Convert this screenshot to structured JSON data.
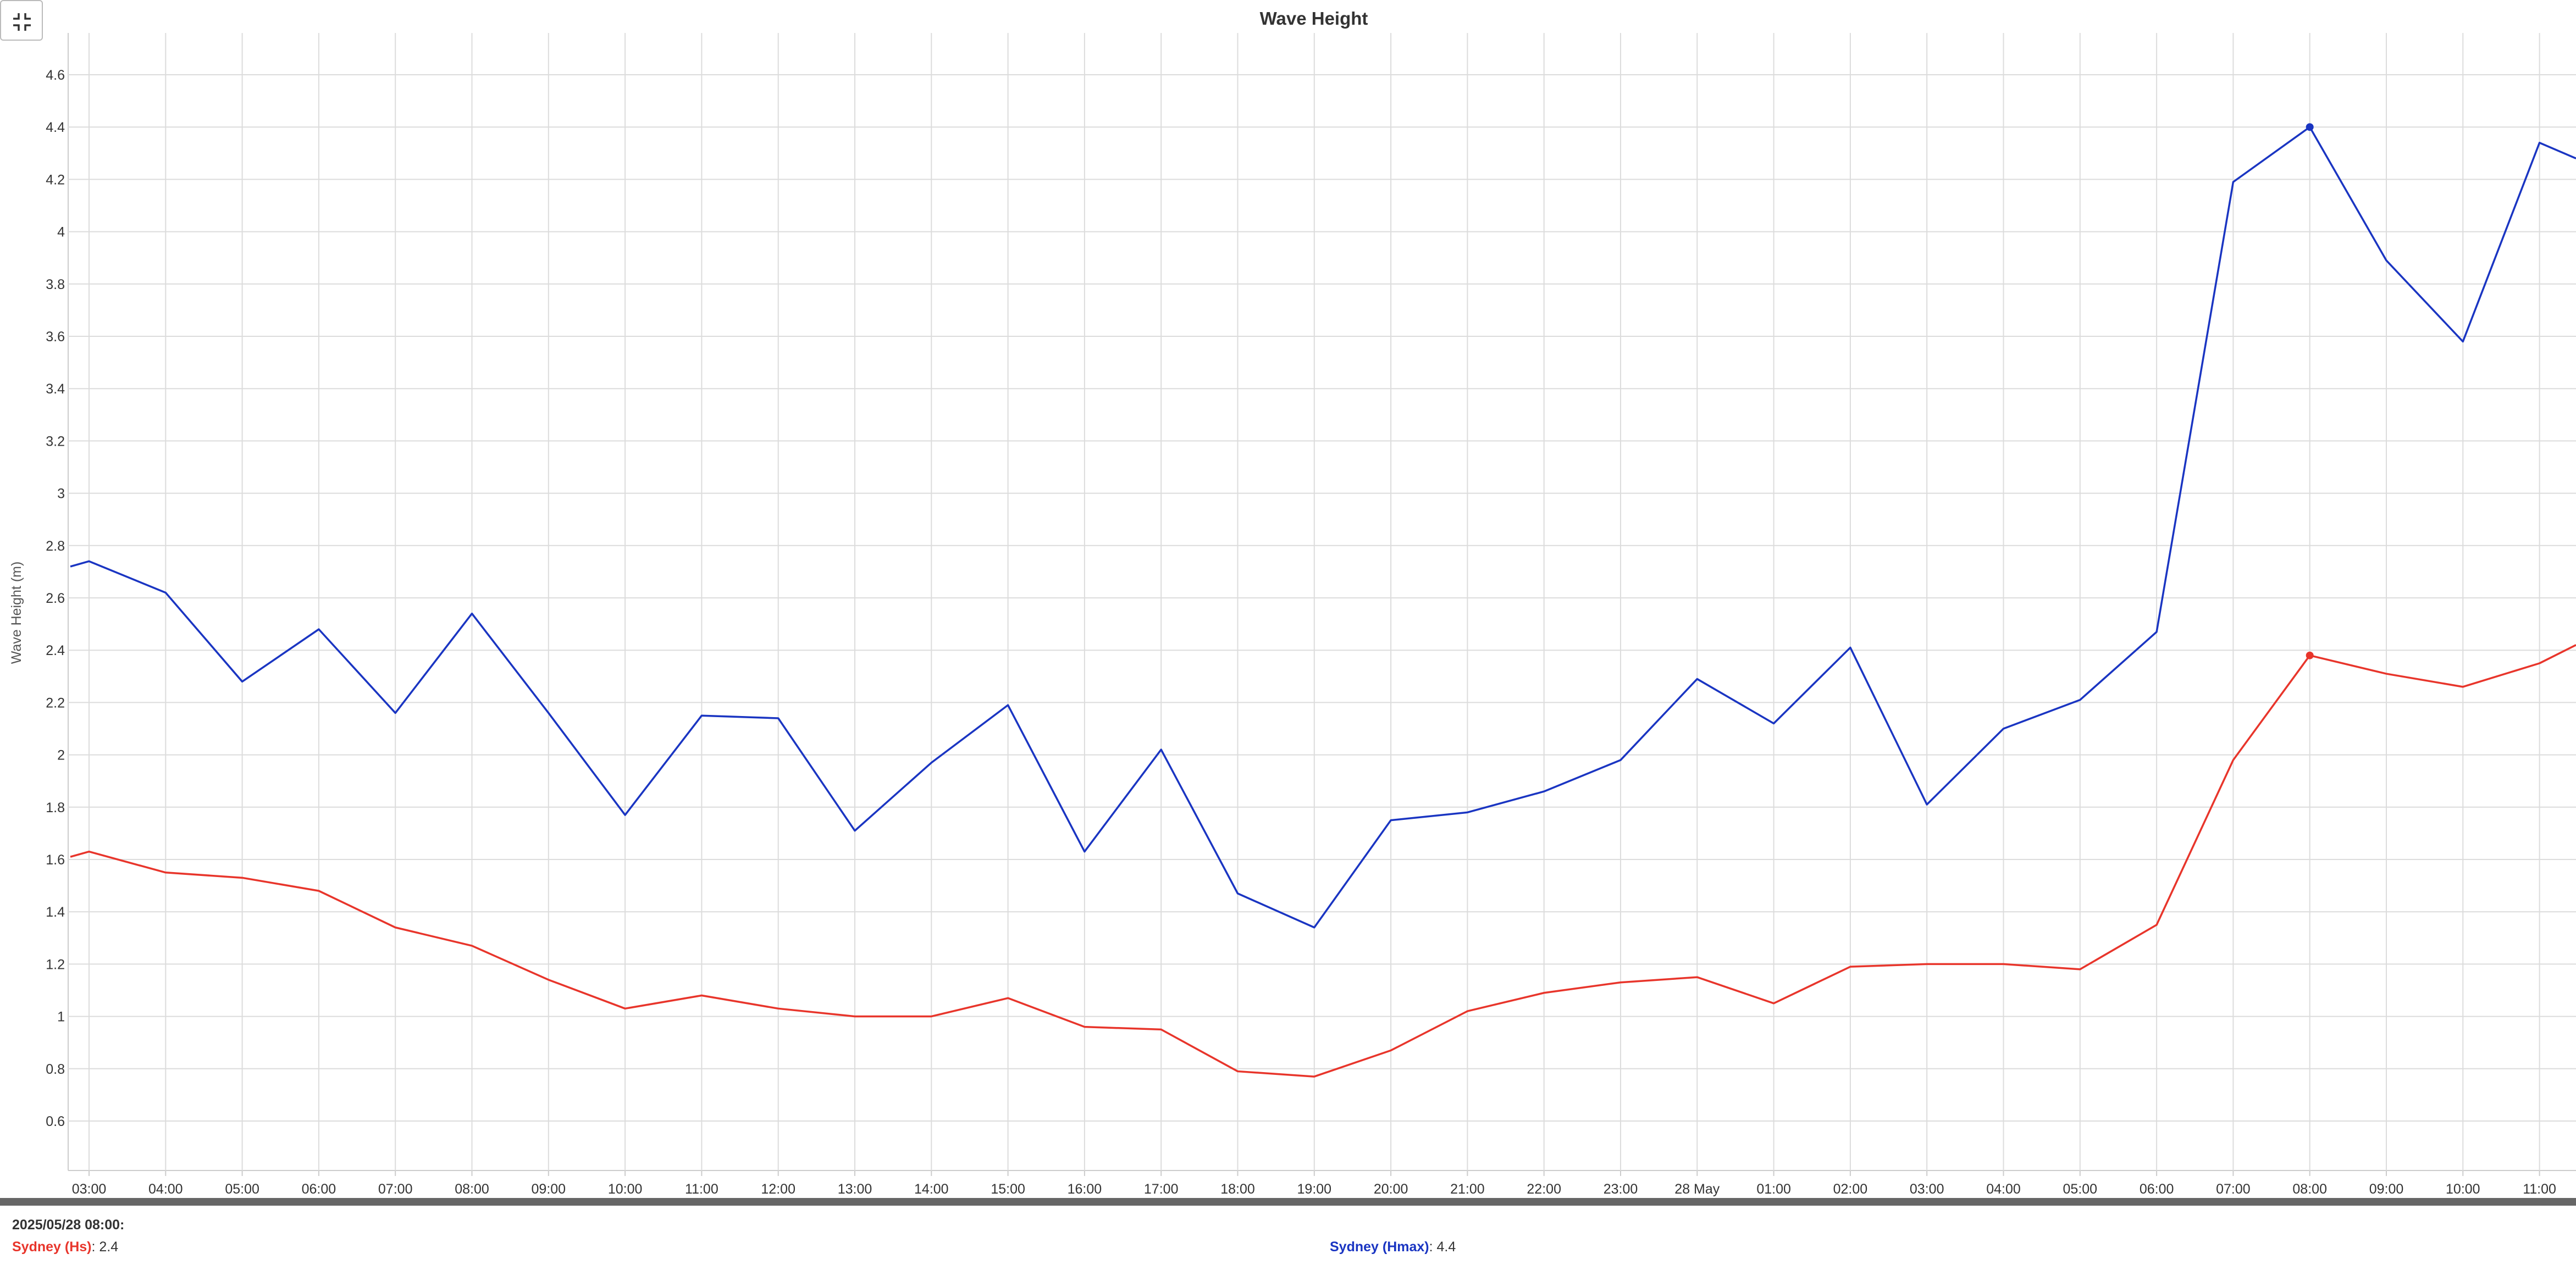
{
  "chart_data": {
    "type": "line",
    "title": "Wave Height",
    "ylabel": "Wave Height (m)",
    "xlabel": "",
    "ylim": [
      0.4,
      4.75
    ],
    "yticks": [
      "0.6",
      "0.8",
      "1",
      "1.2",
      "1.4",
      "1.6",
      "1.8",
      "2",
      "2.2",
      "2.4",
      "2.6",
      "2.8",
      "3",
      "3.2",
      "3.4",
      "3.6",
      "3.8",
      "4",
      "4.2",
      "4.4",
      "4.6"
    ],
    "categories": [
      "03:00",
      "04:00",
      "05:00",
      "06:00",
      "07:00",
      "08:00",
      "09:00",
      "10:00",
      "11:00",
      "12:00",
      "13:00",
      "14:00",
      "15:00",
      "16:00",
      "17:00",
      "18:00",
      "19:00",
      "20:00",
      "21:00",
      "22:00",
      "23:00",
      "28 May",
      "01:00",
      "02:00",
      "03:00",
      "04:00",
      "05:00",
      "06:00",
      "07:00",
      "08:00",
      "09:00",
      "10:00",
      "11:00"
    ],
    "series": [
      {
        "name": "Sydney (Hs)",
        "color": "#e8352b",
        "leading": 1.61,
        "trailing": 2.42,
        "values": [
          1.63,
          1.55,
          1.53,
          1.48,
          1.34,
          1.27,
          1.14,
          1.03,
          1.08,
          1.03,
          1.0,
          1.0,
          1.07,
          0.96,
          0.95,
          0.79,
          0.77,
          0.87,
          1.02,
          1.09,
          1.13,
          1.15,
          1.05,
          1.19,
          1.2,
          1.2,
          1.18,
          1.35,
          1.98,
          2.38,
          2.31,
          2.26,
          2.35
        ]
      },
      {
        "name": "Sydney (Hmax)",
        "color": "#1a35c2",
        "leading": 2.72,
        "trailing": 4.28,
        "values": [
          2.74,
          2.62,
          2.28,
          2.48,
          2.16,
          2.54,
          2.16,
          1.77,
          2.15,
          2.14,
          1.71,
          1.97,
          2.19,
          1.63,
          2.02,
          1.47,
          1.34,
          1.75,
          1.78,
          1.86,
          1.98,
          2.29,
          2.12,
          2.41,
          1.81,
          2.1,
          2.21,
          2.47,
          4.19,
          4.4,
          3.89,
          3.58,
          4.34
        ]
      }
    ],
    "highlight_category": "08:00",
    "grid": true
  },
  "info": {
    "timestamp": "2025/05/28 08:00:",
    "hs_name": "Sydney (Hs)",
    "hs_value": ": 2.4",
    "hmax_name": "Sydney (Hmax)",
    "hmax_value": ": 4.4"
  },
  "controls": {
    "exit_fullscreen_icon": "exit-fullscreen-icon"
  }
}
